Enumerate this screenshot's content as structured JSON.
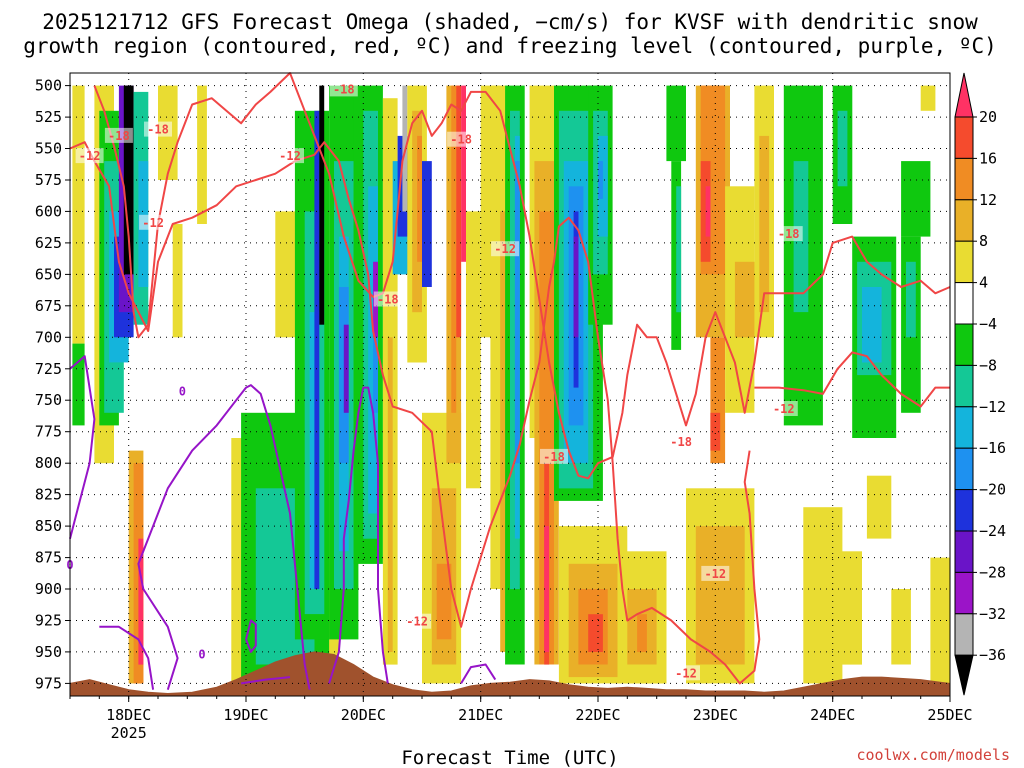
{
  "chart_data": {
    "type": "heatmap",
    "title_lines": [
      "2025121712 GFS Forecast Omega (shaded, −cm/s) for KVSF with dendritic snow",
      "growth region (contoured, red, ºC) and freezing level (contoured, purple, ºC)"
    ],
    "xlabel": "Forecast Time (UTC)",
    "credit": "coolwx.com/models",
    "x_ticks": [
      {
        "label": "18DEC",
        "sub": "2025",
        "hour": 12
      },
      {
        "label": "19DEC",
        "sub": "",
        "hour": 36
      },
      {
        "label": "20DEC",
        "sub": "",
        "hour": 60
      },
      {
        "label": "21DEC",
        "sub": "",
        "hour": 84
      },
      {
        "label": "22DEC",
        "sub": "",
        "hour": 108
      },
      {
        "label": "23DEC",
        "sub": "",
        "hour": 132
      },
      {
        "label": "24DEC",
        "sub": "",
        "hour": 156
      },
      {
        "label": "25DEC",
        "sub": "",
        "hour": 180
      }
    ],
    "x_range_hours": [
      0,
      180
    ],
    "y_ticks": [
      "500",
      "525",
      "550",
      "575",
      "600",
      "625",
      "650",
      "675",
      "700",
      "725",
      "750",
      "775",
      "800",
      "825",
      "850",
      "875",
      "900",
      "925",
      "950",
      "975"
    ],
    "y_range_hpa": [
      490,
      985
    ],
    "colorbar": {
      "labels": [
        "20",
        "16",
        "12",
        "8",
        "4",
        "−4",
        "−8",
        "−12",
        "−16",
        "−20",
        "−24",
        "−28",
        "−32",
        "−36"
      ],
      "colors": [
        "#ff3264",
        "#f54b2d",
        "#f08c23",
        "#e9b028",
        "#e9dc32",
        "#ffffff",
        "#0fc80f",
        "#14c896",
        "#14b4dc",
        "#1e91f0",
        "#1e32dc",
        "#6a14c8",
        "#9b14c8",
        "#b4b4b4",
        "#000000"
      ]
    },
    "contour_colors": {
      "dgz": "#f04646",
      "freezing": "#9614c8",
      "terrain": "#a0522d"
    },
    "dgz_contours": [
      {
        "value": "-12",
        "points": [
          [
            0,
            550
          ],
          [
            3,
            545
          ],
          [
            5,
            560
          ],
          [
            8,
            580
          ],
          [
            10,
            640
          ],
          [
            12,
            665
          ],
          [
            14,
            680
          ],
          [
            16,
            695
          ],
          [
            18,
            640
          ],
          [
            21,
            610
          ],
          [
            25,
            605
          ],
          [
            30,
            595
          ],
          [
            34,
            580
          ],
          [
            38,
            575
          ],
          [
            42,
            570
          ],
          [
            46,
            560
          ],
          [
            50,
            555
          ],
          [
            52,
            545
          ],
          [
            55,
            560
          ],
          [
            57,
            590
          ],
          [
            59,
            615
          ],
          [
            61,
            650
          ],
          [
            62,
            695
          ],
          [
            64,
            730
          ],
          [
            66,
            755
          ],
          [
            70,
            760
          ],
          [
            74,
            775
          ],
          [
            76,
            840
          ],
          [
            78,
            900
          ],
          [
            80,
            930
          ],
          [
            82,
            900
          ],
          [
            86,
            850
          ],
          [
            88,
            830
          ],
          [
            90,
            810
          ],
          [
            92,
            785
          ],
          [
            94,
            750
          ],
          [
            96,
            720
          ],
          [
            97,
            690
          ],
          [
            98,
            660
          ],
          [
            99,
            640
          ],
          [
            100,
            612
          ],
          [
            102,
            605
          ],
          [
            104,
            615
          ],
          [
            106,
            640
          ],
          [
            108,
            700
          ],
          [
            110,
            750
          ],
          [
            111,
            800
          ],
          [
            112,
            860
          ],
          [
            113,
            900
          ],
          [
            114,
            925
          ],
          [
            116,
            920
          ],
          [
            119,
            915
          ],
          [
            123,
            925
          ],
          [
            127,
            940
          ],
          [
            131,
            950
          ],
          [
            134,
            960
          ],
          [
            137,
            975
          ],
          [
            140,
            965
          ],
          [
            141,
            940
          ],
          [
            140,
            900
          ],
          [
            139,
            840
          ],
          [
            138,
            815
          ],
          [
            139,
            790
          ]
        ]
      },
      {
        "value": "-18",
        "points": [
          [
            5,
            500
          ],
          [
            7,
            520
          ],
          [
            9,
            548
          ],
          [
            11,
            580
          ],
          [
            12,
            620
          ],
          [
            13,
            680
          ],
          [
            14,
            700
          ],
          [
            16,
            690
          ],
          [
            18,
            610
          ],
          [
            20,
            570
          ],
          [
            22,
            545
          ],
          [
            25,
            515
          ],
          [
            29,
            510
          ],
          [
            32,
            520
          ],
          [
            35,
            530
          ],
          [
            38,
            515
          ],
          [
            41,
            505
          ],
          [
            45,
            490
          ],
          [
            50,
            540
          ],
          [
            53,
            570
          ],
          [
            56,
            620
          ],
          [
            59,
            655
          ],
          [
            62,
            668
          ],
          [
            64,
            665
          ],
          [
            66,
            640
          ],
          [
            67,
            600
          ],
          [
            68,
            560
          ],
          [
            70,
            530
          ],
          [
            72,
            520
          ],
          [
            74,
            540
          ],
          [
            76,
            530
          ],
          [
            78,
            515
          ],
          [
            80,
            520
          ],
          [
            82,
            505
          ],
          [
            85,
            505
          ],
          [
            88,
            520
          ],
          [
            92,
            580
          ],
          [
            94,
            620
          ],
          [
            96,
            670
          ],
          [
            98,
            720
          ],
          [
            100,
            760
          ],
          [
            102,
            790
          ],
          [
            104,
            810
          ],
          [
            106,
            812
          ],
          [
            108,
            800
          ],
          [
            111,
            795
          ],
          [
            113,
            760
          ],
          [
            114,
            730
          ],
          [
            116,
            690
          ],
          [
            118,
            700
          ],
          [
            120,
            700
          ],
          [
            122,
            720
          ],
          [
            124,
            745
          ],
          [
            126,
            770
          ],
          [
            128,
            745
          ],
          [
            130,
            700
          ],
          [
            132,
            680
          ],
          [
            134,
            700
          ],
          [
            136,
            720
          ],
          [
            137,
            740
          ],
          [
            138,
            760
          ],
          [
            140,
            720
          ],
          [
            142,
            665
          ],
          [
            146,
            665
          ],
          [
            150,
            665
          ],
          [
            154,
            650
          ],
          [
            156,
            625
          ],
          [
            160,
            620
          ],
          [
            163,
            640
          ],
          [
            166,
            650
          ],
          [
            170,
            660
          ],
          [
            174,
            655
          ],
          [
            177,
            665
          ],
          [
            180,
            660
          ]
        ]
      },
      {
        "value": "-12",
        "points": [
          [
            140,
            740
          ],
          [
            145,
            740
          ],
          [
            150,
            742
          ],
          [
            154,
            745
          ],
          [
            157,
            725
          ],
          [
            160,
            712
          ],
          [
            163,
            715
          ],
          [
            166,
            730
          ],
          [
            170,
            745
          ],
          [
            174,
            755
          ],
          [
            177,
            740
          ],
          [
            180,
            740
          ]
        ]
      }
    ],
    "freezing_contours": [
      {
        "value": "0",
        "points": [
          [
            0,
            725
          ],
          [
            3,
            715
          ],
          [
            5,
            765
          ],
          [
            4,
            800
          ],
          [
            2,
            830
          ],
          [
            0,
            860
          ]
        ]
      },
      {
        "value": "0",
        "points": [
          [
            6,
            930
          ],
          [
            10,
            930
          ],
          [
            14,
            940
          ],
          [
            16,
            955
          ],
          [
            17,
            980
          ]
        ]
      },
      {
        "value": "0",
        "points": [
          [
            20,
            980
          ],
          [
            22,
            955
          ],
          [
            20,
            930
          ],
          [
            15,
            900
          ],
          [
            14,
            880
          ],
          [
            16,
            860
          ],
          [
            20,
            820
          ],
          [
            25,
            790
          ],
          [
            30,
            770
          ],
          [
            34,
            750
          ],
          [
            36,
            740
          ],
          [
            37,
            738
          ],
          [
            39,
            745
          ],
          [
            41,
            770
          ],
          [
            43,
            805
          ],
          [
            45,
            840
          ],
          [
            46,
            880
          ],
          [
            47,
            920
          ],
          [
            48,
            960
          ],
          [
            49,
            980
          ]
        ]
      },
      {
        "value": "0",
        "points": [
          [
            35,
            975
          ],
          [
            40,
            972
          ],
          [
            45,
            970
          ]
        ]
      },
      {
        "value": "0",
        "points": [
          [
            53,
            975
          ],
          [
            55,
            950
          ],
          [
            56,
            900
          ],
          [
            56,
            860
          ],
          [
            57,
            830
          ],
          [
            58,
            790
          ],
          [
            59,
            760
          ],
          [
            60,
            740
          ],
          [
            61,
            740
          ],
          [
            62,
            760
          ],
          [
            63,
            800
          ],
          [
            63,
            850
          ],
          [
            63,
            900
          ],
          [
            64,
            950
          ],
          [
            65,
            975
          ]
        ]
      },
      {
        "value": "-1",
        "points": [
          [
            80,
            975
          ],
          [
            82,
            962
          ],
          [
            85,
            960
          ],
          [
            87,
            972
          ]
        ]
      },
      {
        "value": "0",
        "points": [
          [
            36,
            940
          ],
          [
            37,
            925
          ],
          [
            38,
            928
          ],
          [
            38,
            945
          ],
          [
            37,
            950
          ],
          [
            36,
            940
          ]
        ]
      }
    ],
    "contour_labels": [
      {
        "text": "-12",
        "x": 4,
        "y": 556,
        "kind": "dgz"
      },
      {
        "text": "-18",
        "x": 10,
        "y": 540,
        "kind": "dgz"
      },
      {
        "text": "-18",
        "x": 18,
        "y": 535,
        "kind": "dgz"
      },
      {
        "text": "-12",
        "x": 17,
        "y": 609,
        "kind": "dgz"
      },
      {
        "text": "-12",
        "x": 45,
        "y": 556,
        "kind": "dgz"
      },
      {
        "text": "-18",
        "x": 56,
        "y": 503,
        "kind": "dgz"
      },
      {
        "text": "-18",
        "x": 65,
        "y": 670,
        "kind": "dgz"
      },
      {
        "text": "-18",
        "x": 80,
        "y": 543,
        "kind": "dgz"
      },
      {
        "text": "-12",
        "x": 89,
        "y": 630,
        "kind": "dgz"
      },
      {
        "text": "-18",
        "x": 99,
        "y": 795,
        "kind": "dgz"
      },
      {
        "text": "-18",
        "x": 125,
        "y": 783,
        "kind": "dgz"
      },
      {
        "text": "-12",
        "x": 132,
        "y": 888,
        "kind": "dgz"
      },
      {
        "text": "-12",
        "x": 126,
        "y": 967,
        "kind": "dgz"
      },
      {
        "text": "-12",
        "x": 71,
        "y": 926,
        "kind": "dgz"
      },
      {
        "text": "-18",
        "x": 147,
        "y": 618,
        "kind": "dgz"
      },
      {
        "text": "-12",
        "x": 146,
        "y": 757,
        "kind": "dgz"
      },
      {
        "text": "0",
        "x": 0,
        "y": 881,
        "kind": "freezing"
      },
      {
        "text": "0",
        "x": 23,
        "y": 743,
        "kind": "freezing"
      },
      {
        "text": "0",
        "x": 27,
        "y": 952,
        "kind": "freezing"
      }
    ],
    "terrain_profile": [
      [
        0,
        975
      ],
      [
        4,
        972
      ],
      [
        8,
        976
      ],
      [
        12,
        980
      ],
      [
        16,
        982
      ],
      [
        20,
        983
      ],
      [
        25,
        982
      ],
      [
        30,
        978
      ],
      [
        34,
        972
      ],
      [
        38,
        965
      ],
      [
        42,
        958
      ],
      [
        46,
        953
      ],
      [
        50,
        950
      ],
      [
        54,
        952
      ],
      [
        58,
        960
      ],
      [
        62,
        970
      ],
      [
        66,
        976
      ],
      [
        70,
        980
      ],
      [
        74,
        982
      ],
      [
        78,
        981
      ],
      [
        82,
        977
      ],
      [
        86,
        975
      ],
      [
        90,
        974
      ],
      [
        94,
        972
      ],
      [
        98,
        973
      ],
      [
        102,
        976
      ],
      [
        106,
        978
      ],
      [
        110,
        979
      ],
      [
        114,
        978
      ],
      [
        118,
        979
      ],
      [
        122,
        980
      ],
      [
        126,
        980
      ],
      [
        130,
        981
      ],
      [
        134,
        981
      ],
      [
        138,
        981
      ],
      [
        142,
        982
      ],
      [
        146,
        981
      ],
      [
        150,
        978
      ],
      [
        154,
        975
      ],
      [
        158,
        972
      ],
      [
        162,
        970
      ],
      [
        166,
        970
      ],
      [
        170,
        971
      ],
      [
        174,
        972
      ],
      [
        178,
        974
      ],
      [
        180,
        975
      ]
    ]
  }
}
